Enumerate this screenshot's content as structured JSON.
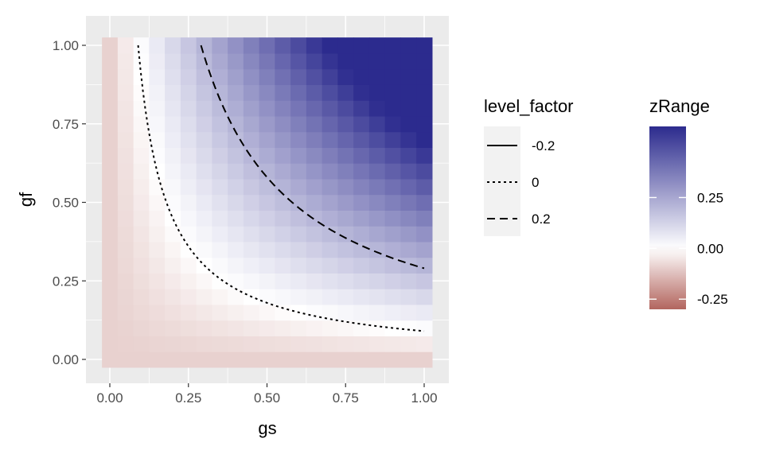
{
  "chart_data": {
    "type": "heatmap",
    "xlabel": "gs",
    "ylabel": "gf",
    "xlim": [
      0,
      1
    ],
    "ylim": [
      0,
      1
    ],
    "x_ticks": [
      "0.00",
      "0.25",
      "0.50",
      "0.75",
      "1.00"
    ],
    "y_ticks": [
      "0.00",
      "0.25",
      "0.50",
      "0.75",
      "1.00"
    ],
    "grid": true,
    "fill_formula": "z = gs*gf - 0.09",
    "z_range": [
      -0.09,
      0.91
    ],
    "colors": {
      "low": "#b2655e",
      "mid": "#ffffff",
      "high": "#2c2b8e",
      "panel": "#ebebeb",
      "grid": "#ffffff"
    },
    "contour_legend": {
      "title": "level_factor",
      "placement": "right",
      "entries": [
        {
          "label": "-0.2",
          "value": -0.2,
          "linetype": "solid"
        },
        {
          "label": "0",
          "value": 0,
          "linetype": "dotted"
        },
        {
          "label": "0.2",
          "value": 0.2,
          "linetype": "dashed"
        }
      ]
    },
    "colorbar": {
      "title": "zRange",
      "placement": "right",
      "limits": [
        -0.3,
        0.6
      ],
      "ticks": [
        {
          "label": "0.25",
          "value": 0.25
        },
        {
          "label": "0.00",
          "value": 0.0
        },
        {
          "label": "-0.25",
          "value": -0.25
        }
      ]
    }
  }
}
